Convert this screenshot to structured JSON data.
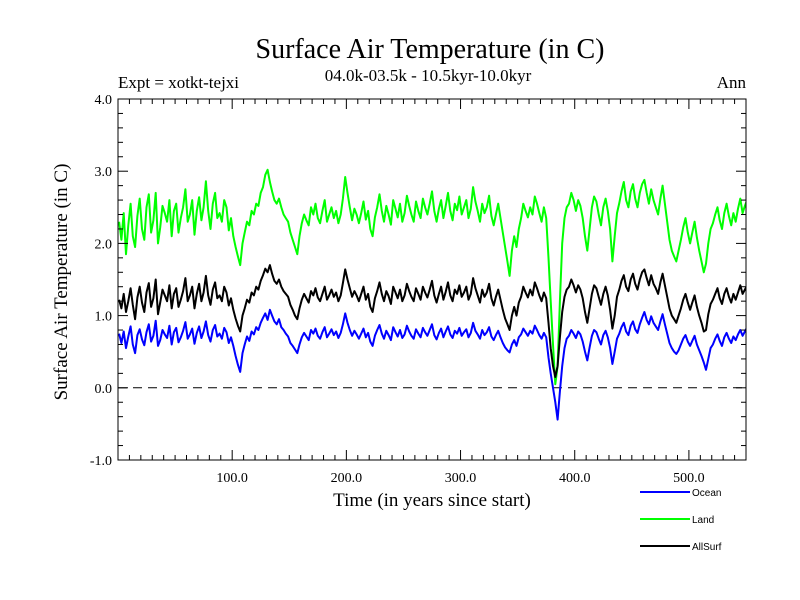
{
  "chart_data": {
    "type": "line",
    "title": "Surface Air Temperature (in C)",
    "subtitle": "04.0k-03.5k - 10.5kyr-10.0kyr",
    "expt_label": "Expt = xotkt-tejxi",
    "period_label": "Ann",
    "xlabel": "Time (in years since start)",
    "ylabel": "Surface Air Temperature (in C)",
    "xlim": [
      0,
      550
    ],
    "ylim": [
      -1.0,
      4.0
    ],
    "x_ticks": [
      100,
      200,
      300,
      400,
      500
    ],
    "x_tick_labels": [
      "100.0",
      "200.0",
      "300.0",
      "400.0",
      "500.0"
    ],
    "y_ticks": [
      -1,
      0,
      1,
      2,
      3,
      4
    ],
    "y_tick_labels": [
      "-1.0",
      "0.0",
      "1.0",
      "2.0",
      "3.0",
      "4.0"
    ],
    "zero_line": true,
    "x_step_years": 2,
    "x_start_year": 1,
    "series": [
      {
        "name": "Ocean",
        "color": "#0000ff",
        "values": [
          0.75,
          0.62,
          0.78,
          0.55,
          0.71,
          0.85,
          0.6,
          0.48,
          0.73,
          0.81,
          0.67,
          0.59,
          0.77,
          0.88,
          0.64,
          0.72,
          0.93,
          0.58,
          0.66,
          0.8,
          0.74,
          0.69,
          0.86,
          0.6,
          0.77,
          0.83,
          0.63,
          0.7,
          0.79,
          0.91,
          0.68,
          0.74,
          0.82,
          0.61,
          0.76,
          0.85,
          0.69,
          0.78,
          0.92,
          0.73,
          0.64,
          0.8,
          0.87,
          0.71,
          0.75,
          0.68,
          0.83,
          0.77,
          0.62,
          0.7,
          0.58,
          0.44,
          0.32,
          0.22,
          0.48,
          0.6,
          0.71,
          0.65,
          0.78,
          0.74,
          0.84,
          0.8,
          0.9,
          0.97,
          1.03,
          0.94,
          1.08,
          1.0,
          0.92,
          0.88,
          0.95,
          0.84,
          0.8,
          0.75,
          0.71,
          0.62,
          0.58,
          0.53,
          0.48,
          0.6,
          0.7,
          0.76,
          0.71,
          0.66,
          0.8,
          0.75,
          0.82,
          0.72,
          0.68,
          0.77,
          0.84,
          0.7,
          0.75,
          0.81,
          0.73,
          0.78,
          0.69,
          0.76,
          0.88,
          1.03,
          0.9,
          0.8,
          0.72,
          0.79,
          0.74,
          0.68,
          0.75,
          0.82,
          0.7,
          0.76,
          0.64,
          0.58,
          0.72,
          0.8,
          0.87,
          0.75,
          0.68,
          0.79,
          0.73,
          0.66,
          0.84,
          0.77,
          0.71,
          0.8,
          0.69,
          0.74,
          0.86,
          0.78,
          0.72,
          0.68,
          0.81,
          0.75,
          0.7,
          0.83,
          0.77,
          0.72,
          0.8,
          0.88,
          0.73,
          0.67,
          0.76,
          0.82,
          0.7,
          0.78,
          0.85,
          0.74,
          0.69,
          0.79,
          0.75,
          0.83,
          0.72,
          0.77,
          0.81,
          0.7,
          0.76,
          0.9,
          0.79,
          0.74,
          0.68,
          0.8,
          0.73,
          0.77,
          0.84,
          0.71,
          0.66,
          0.73,
          0.79,
          0.7,
          0.62,
          0.56,
          0.52,
          0.49,
          0.6,
          0.66,
          0.58,
          0.7,
          0.74,
          0.82,
          0.77,
          0.72,
          0.79,
          0.75,
          0.86,
          0.8,
          0.73,
          0.68,
          0.76,
          0.7,
          0.42,
          0.2,
          0.0,
          -0.2,
          -0.44,
          -0.05,
          0.3,
          0.55,
          0.68,
          0.72,
          0.8,
          0.75,
          0.69,
          0.78,
          0.74,
          0.64,
          0.5,
          0.38,
          0.56,
          0.72,
          0.8,
          0.77,
          0.68,
          0.6,
          0.73,
          0.79,
          0.7,
          0.55,
          0.33,
          0.5,
          0.68,
          0.75,
          0.84,
          0.9,
          0.78,
          0.73,
          0.86,
          0.92,
          0.81,
          0.76,
          0.88,
          0.97,
          1.05,
          0.94,
          0.88,
          0.99,
          0.9,
          0.85,
          0.8,
          0.92,
          1.02,
          0.88,
          0.75,
          0.62,
          0.55,
          0.5,
          0.47,
          0.52,
          0.6,
          0.68,
          0.73,
          0.64,
          0.58,
          0.65,
          0.72,
          0.6,
          0.52,
          0.44,
          0.35,
          0.25,
          0.4,
          0.55,
          0.6,
          0.68,
          0.74,
          0.65,
          0.58,
          0.7,
          0.76,
          0.68,
          0.62,
          0.71,
          0.66,
          0.74,
          0.8,
          0.72,
          0.78,
          0.84,
          0.76,
          0.8,
          0.83,
          0.79,
          0.86
        ]
      },
      {
        "name": "Land",
        "color": "#00ff00",
        "values": [
          2.3,
          2.05,
          2.42,
          1.85,
          2.25,
          2.55,
          2.1,
          1.95,
          2.38,
          2.62,
          2.2,
          2.05,
          2.5,
          2.68,
          2.15,
          2.32,
          2.7,
          2.0,
          2.22,
          2.52,
          2.42,
          2.3,
          2.6,
          2.1,
          2.45,
          2.55,
          2.15,
          2.35,
          2.5,
          2.75,
          2.3,
          2.4,
          2.6,
          2.12,
          2.45,
          2.64,
          2.32,
          2.5,
          2.86,
          2.45,
          2.2,
          2.55,
          2.7,
          2.35,
          2.42,
          2.3,
          2.6,
          2.5,
          2.18,
          2.35,
          2.1,
          1.95,
          1.82,
          1.7,
          2.0,
          2.15,
          2.3,
          2.25,
          2.45,
          2.4,
          2.55,
          2.52,
          2.7,
          2.78,
          2.95,
          3.02,
          2.85,
          2.72,
          2.6,
          2.55,
          2.62,
          2.5,
          2.4,
          2.35,
          2.3,
          2.15,
          2.05,
          1.95,
          1.85,
          2.1,
          2.28,
          2.4,
          2.32,
          2.25,
          2.5,
          2.4,
          2.55,
          2.35,
          2.28,
          2.45,
          2.6,
          2.3,
          2.4,
          2.5,
          2.35,
          2.45,
          2.28,
          2.4,
          2.62,
          2.92,
          2.7,
          2.5,
          2.32,
          2.48,
          2.4,
          2.28,
          2.42,
          2.58,
          2.33,
          2.45,
          2.2,
          2.1,
          2.36,
          2.5,
          2.68,
          2.45,
          2.3,
          2.52,
          2.4,
          2.26,
          2.6,
          2.48,
          2.36,
          2.55,
          2.3,
          2.42,
          2.66,
          2.52,
          2.4,
          2.3,
          2.58,
          2.45,
          2.35,
          2.62,
          2.5,
          2.4,
          2.55,
          2.72,
          2.45,
          2.3,
          2.48,
          2.6,
          2.35,
          2.52,
          2.7,
          2.45,
          2.32,
          2.55,
          2.46,
          2.65,
          2.4,
          2.5,
          2.6,
          2.35,
          2.48,
          2.78,
          2.58,
          2.45,
          2.3,
          2.55,
          2.42,
          2.5,
          2.66,
          2.38,
          2.25,
          2.4,
          2.55,
          2.35,
          2.15,
          1.95,
          1.75,
          1.55,
          1.9,
          2.1,
          1.95,
          2.2,
          2.35,
          2.55,
          2.45,
          2.36,
          2.5,
          2.4,
          2.65,
          2.55,
          2.42,
          2.3,
          2.5,
          2.35,
          1.8,
          1.2,
          0.6,
          0.05,
          0.3,
          1.2,
          2.0,
          2.35,
          2.5,
          2.55,
          2.7,
          2.6,
          2.45,
          2.6,
          2.52,
          2.35,
          2.1,
          1.9,
          2.2,
          2.5,
          2.65,
          2.58,
          2.4,
          2.25,
          2.5,
          2.62,
          2.45,
          2.2,
          1.75,
          2.1,
          2.42,
          2.56,
          2.72,
          2.85,
          2.6,
          2.5,
          2.72,
          2.82,
          2.62,
          2.5,
          2.7,
          2.82,
          2.88,
          2.7,
          2.55,
          2.75,
          2.6,
          2.5,
          2.4,
          2.62,
          2.8,
          2.55,
          2.3,
          2.05,
          1.9,
          1.82,
          1.75,
          1.9,
          2.05,
          2.22,
          2.35,
          2.15,
          2.0,
          2.15,
          2.3,
          2.08,
          1.9,
          1.75,
          1.6,
          1.72,
          2.0,
          2.2,
          2.28,
          2.4,
          2.5,
          2.32,
          2.2,
          2.42,
          2.55,
          2.38,
          2.25,
          2.42,
          2.3,
          2.48,
          2.62,
          2.42,
          2.52,
          2.6,
          2.42,
          2.5,
          2.55,
          2.42,
          2.5
        ]
      },
      {
        "name": "AllSurf",
        "color": "#000000",
        "values": [
          1.22,
          1.1,
          1.3,
          1.05,
          1.2,
          1.38,
          1.15,
          0.95,
          1.25,
          1.4,
          1.18,
          1.05,
          1.32,
          1.45,
          1.12,
          1.24,
          1.5,
          1.02,
          1.18,
          1.36,
          1.28,
          1.2,
          1.42,
          1.1,
          1.3,
          1.38,
          1.12,
          1.22,
          1.34,
          1.52,
          1.2,
          1.28,
          1.4,
          1.1,
          1.3,
          1.44,
          1.2,
          1.32,
          1.55,
          1.28,
          1.15,
          1.36,
          1.46,
          1.24,
          1.28,
          1.2,
          1.4,
          1.32,
          1.14,
          1.24,
          1.08,
          0.96,
          0.86,
          0.78,
          1.0,
          1.1,
          1.22,
          1.18,
          1.32,
          1.28,
          1.4,
          1.36,
          1.48,
          1.56,
          1.65,
          1.6,
          1.7,
          1.58,
          1.48,
          1.44,
          1.5,
          1.4,
          1.34,
          1.3,
          1.26,
          1.15,
          1.08,
          1.0,
          0.95,
          1.1,
          1.22,
          1.3,
          1.24,
          1.18,
          1.34,
          1.28,
          1.38,
          1.25,
          1.2,
          1.3,
          1.4,
          1.22,
          1.28,
          1.36,
          1.26,
          1.32,
          1.2,
          1.28,
          1.45,
          1.64,
          1.5,
          1.38,
          1.26,
          1.34,
          1.28,
          1.2,
          1.3,
          1.4,
          1.22,
          1.3,
          1.12,
          1.05,
          1.24,
          1.34,
          1.46,
          1.3,
          1.2,
          1.34,
          1.27,
          1.16,
          1.4,
          1.32,
          1.24,
          1.36,
          1.2,
          1.28,
          1.44,
          1.34,
          1.26,
          1.2,
          1.38,
          1.3,
          1.22,
          1.4,
          1.32,
          1.25,
          1.36,
          1.48,
          1.28,
          1.18,
          1.3,
          1.4,
          1.22,
          1.33,
          1.46,
          1.28,
          1.2,
          1.36,
          1.3,
          1.42,
          1.26,
          1.32,
          1.4,
          1.22,
          1.3,
          1.52,
          1.38,
          1.28,
          1.18,
          1.36,
          1.26,
          1.32,
          1.44,
          1.24,
          1.14,
          1.26,
          1.36,
          1.22,
          1.08,
          0.96,
          0.88,
          0.8,
          1.0,
          1.12,
          1.0,
          1.18,
          1.26,
          1.4,
          1.32,
          1.25,
          1.36,
          1.28,
          1.46,
          1.38,
          1.28,
          1.2,
          1.32,
          1.24,
          0.9,
          0.55,
          0.3,
          0.15,
          0.3,
          0.7,
          1.05,
          1.26,
          1.36,
          1.4,
          1.5,
          1.42,
          1.32,
          1.42,
          1.36,
          1.24,
          1.05,
          0.9,
          1.1,
          1.3,
          1.42,
          1.38,
          1.26,
          1.15,
          1.3,
          1.4,
          1.28,
          1.08,
          0.82,
          1.0,
          1.26,
          1.36,
          1.48,
          1.56,
          1.4,
          1.34,
          1.5,
          1.58,
          1.44,
          1.36,
          1.5,
          1.6,
          1.64,
          1.52,
          1.42,
          1.56,
          1.44,
          1.38,
          1.3,
          1.46,
          1.58,
          1.42,
          1.26,
          1.1,
          1.0,
          0.95,
          0.9,
          1.0,
          1.1,
          1.22,
          1.3,
          1.18,
          1.08,
          1.18,
          1.28,
          1.12,
          1.0,
          0.9,
          0.78,
          0.8,
          1.02,
          1.16,
          1.22,
          1.3,
          1.38,
          1.24,
          1.16,
          1.3,
          1.38,
          1.26,
          1.18,
          1.3,
          1.22,
          1.32,
          1.42,
          1.3,
          1.36,
          1.42,
          1.3,
          1.36,
          1.4,
          1.33,
          1.38
        ]
      }
    ],
    "legend": [
      {
        "label": "Ocean",
        "color": "#0000ff"
      },
      {
        "label": "Land",
        "color": "#00ff00"
      },
      {
        "label": "AllSurf",
        "color": "#000000"
      }
    ]
  }
}
